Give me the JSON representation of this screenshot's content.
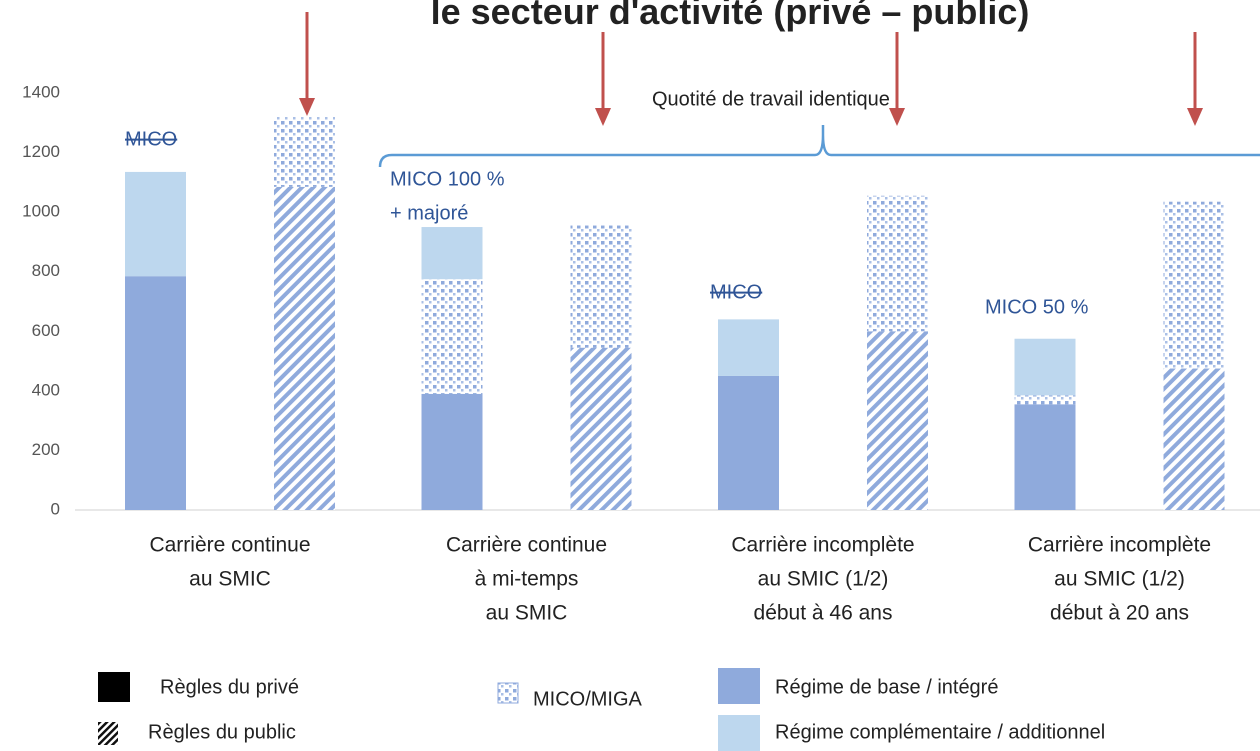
{
  "chart_data": {
    "type": "stacked-bar",
    "title": "le secteur d'activité (privé – public)",
    "categories": [
      [
        "Carrière continue",
        "au SMIC"
      ],
      [
        "Carrière continue",
        "à mi-temps",
        "au SMIC"
      ],
      [
        "Carrière incomplète",
        "au SMIC (1/2)",
        "début à 46 ans"
      ],
      [
        "Carrière incomplète",
        "au SMIC (1/2)",
        "début à 20 ans"
      ]
    ],
    "series": [
      {
        "name": "Régime de base / intégré",
        "color": "#8faadc",
        "private": [
          785,
          390,
          450,
          355
        ],
        "public": [
          1085,
          545,
          600,
          475
        ]
      },
      {
        "name": "MICO/MIGA",
        "color": "#8faadc",
        "private": [
          null,
          385,
          null,
          30
        ],
        "public": [
          235,
          410,
          455,
          560
        ]
      },
      {
        "name": "Régime complémentaire / additionnel",
        "color": "#bdd7ee",
        "private": [
          350,
          175,
          190,
          190
        ],
        "public": [
          null,
          null,
          null,
          null
        ]
      }
    ],
    "rules": [
      "Règles du privé",
      "Règles du public"
    ],
    "annotations": [
      "MICO",
      "MICO 100 %",
      "+ majoré",
      "MICO",
      "MICO 50 %",
      "Quotité de travail identique"
    ],
    "ylim": [
      0,
      1400
    ],
    "yticks": [
      0,
      200,
      400,
      600,
      800,
      1000,
      1200,
      1400
    ],
    "grid": false
  }
}
